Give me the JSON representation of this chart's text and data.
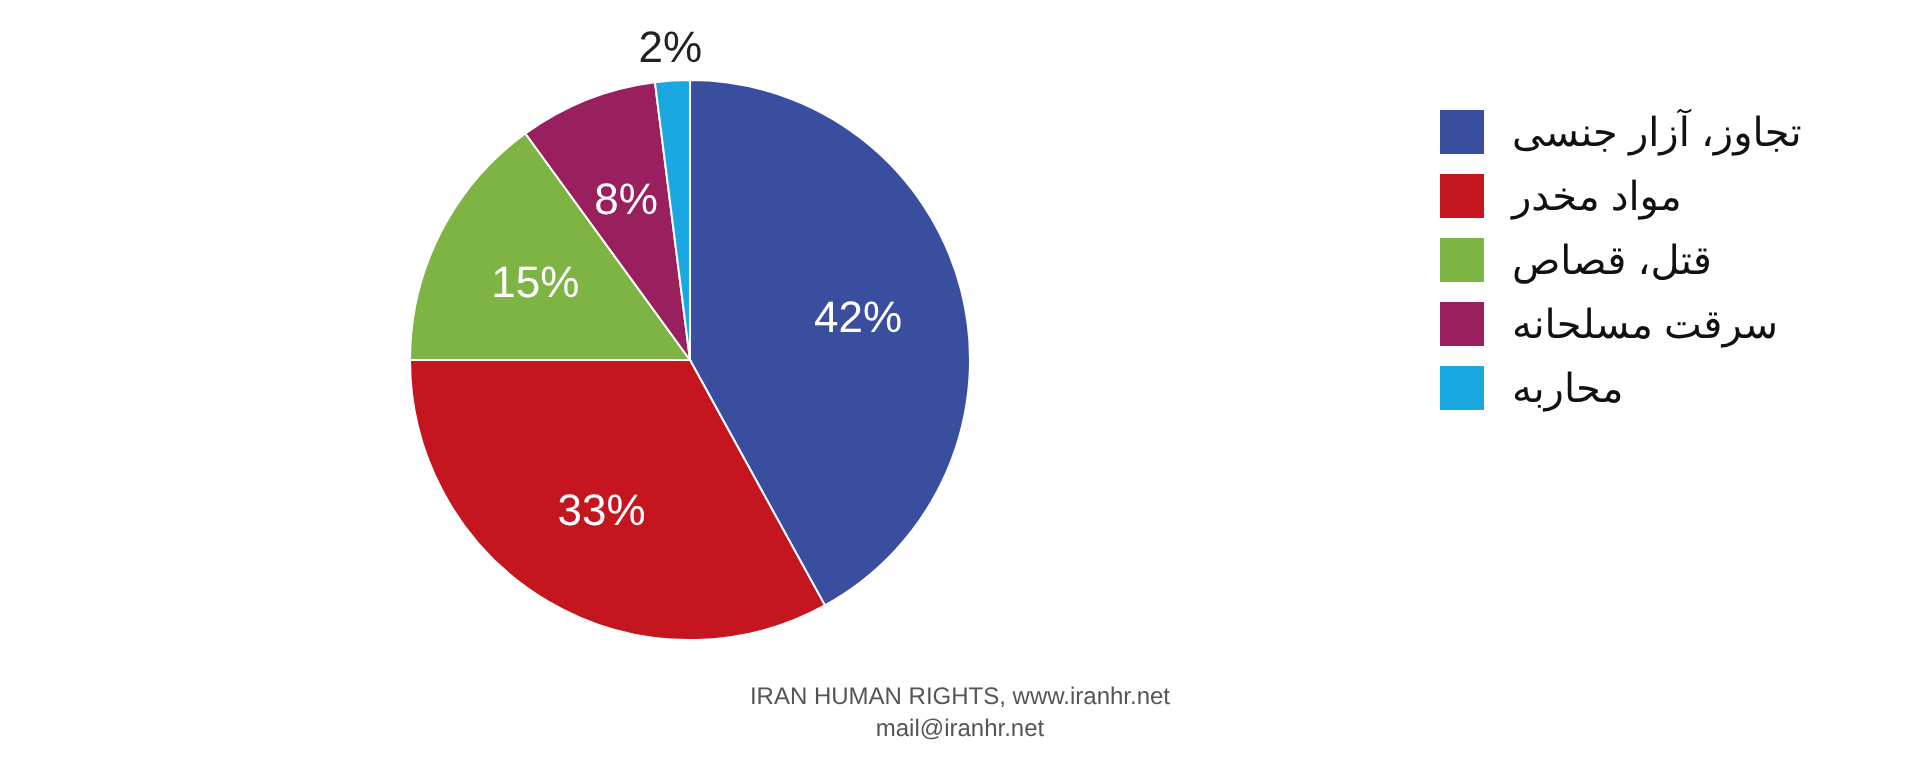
{
  "chart_data": {
    "type": "pie",
    "categories": [
      "تجاوز، آزار جنسی",
      "مواد مخدر",
      "قتل، قصاص",
      "سرقت مسلحانه",
      "محاربه"
    ],
    "values": [
      42,
      33,
      15,
      8,
      2
    ],
    "colors": [
      "#3a4ea0",
      "#c5161f",
      "#7db443",
      "#9a1f5f",
      "#19a8e0"
    ],
    "value_labels": [
      "42%",
      "33%",
      "15%",
      "8%",
      "2%"
    ],
    "legend": "right",
    "annotations": [
      "IRAN HUMAN RIGHTS, www.iranhr.net",
      "mail@iranhr.net"
    ]
  }
}
